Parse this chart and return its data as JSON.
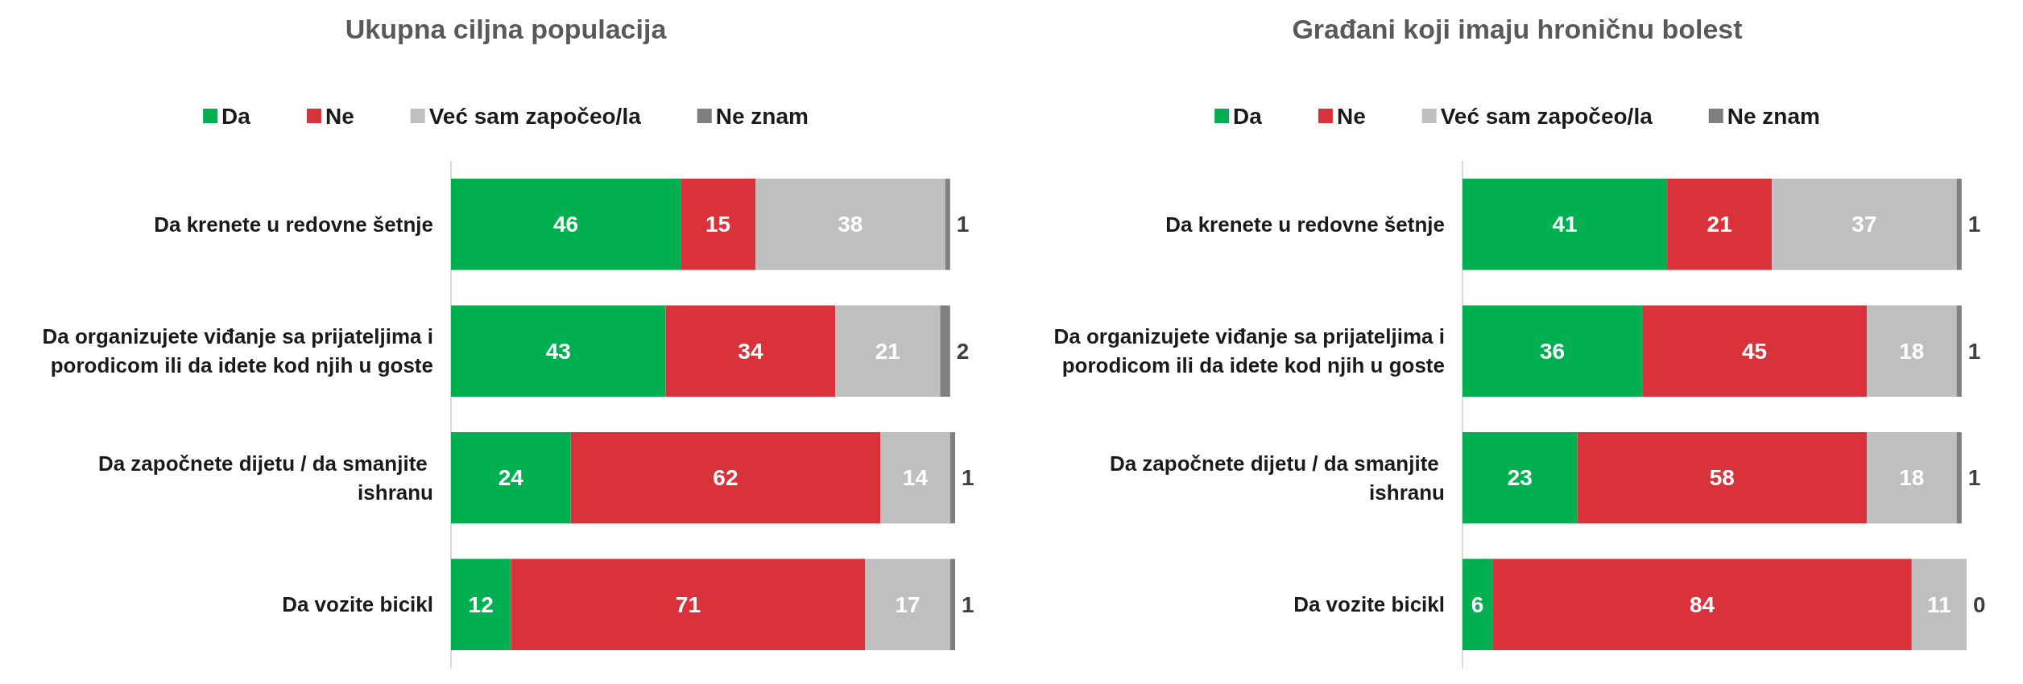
{
  "chart_data": [
    {
      "type": "bar",
      "orientation": "horizontal",
      "stacked": true,
      "title": "Ukupna ciljna populacija",
      "categories": [
        "Da krenete u redovne šetnje",
        "Da organizujete viđanje sa prijateljima i porodicom ili da idete kod njih u goste",
        "Da započnete dijetu / da smanjite ishranu",
        "Da vozite bicikl"
      ],
      "series": [
        {
          "name": "Da",
          "color": "#00b050",
          "values": [
            46,
            43,
            24,
            12
          ]
        },
        {
          "name": "Ne",
          "color": "#d9323b",
          "values": [
            15,
            34,
            62,
            71
          ]
        },
        {
          "name": "Već sam započeo/la",
          "color": "#bfbfbf",
          "values": [
            38,
            21,
            14,
            17
          ]
        },
        {
          "name": "Ne znam",
          "color": "#7f7f7f",
          "values": [
            1,
            2,
            1,
            1
          ]
        }
      ],
      "xlim": [
        0,
        101
      ],
      "data_labels": true,
      "legend": "top",
      "grid": false
    },
    {
      "type": "bar",
      "orientation": "horizontal",
      "stacked": true,
      "title": "Građani koji imaju hroničnu bolest",
      "categories": [
        "Da krenete u redovne šetnje",
        "Da organizujete viđanje sa prijateljima i porodicom ili da idete kod njih u goste",
        "Da započnete dijetu / da smanjite ishranu",
        "Da vozite bicikl"
      ],
      "series": [
        {
          "name": "Da",
          "color": "#00b050",
          "values": [
            41,
            36,
            23,
            6
          ]
        },
        {
          "name": "Ne",
          "color": "#d9323b",
          "values": [
            21,
            45,
            58,
            84
          ]
        },
        {
          "name": "Već sam započeo/la",
          "color": "#bfbfbf",
          "values": [
            37,
            18,
            18,
            11
          ]
        },
        {
          "name": "Ne znam",
          "color": "#7f7f7f",
          "values": [
            1,
            1,
            1,
            0
          ]
        }
      ],
      "xlim": [
        0,
        101
      ],
      "data_labels": true,
      "legend": "top",
      "grid": false
    }
  ]
}
